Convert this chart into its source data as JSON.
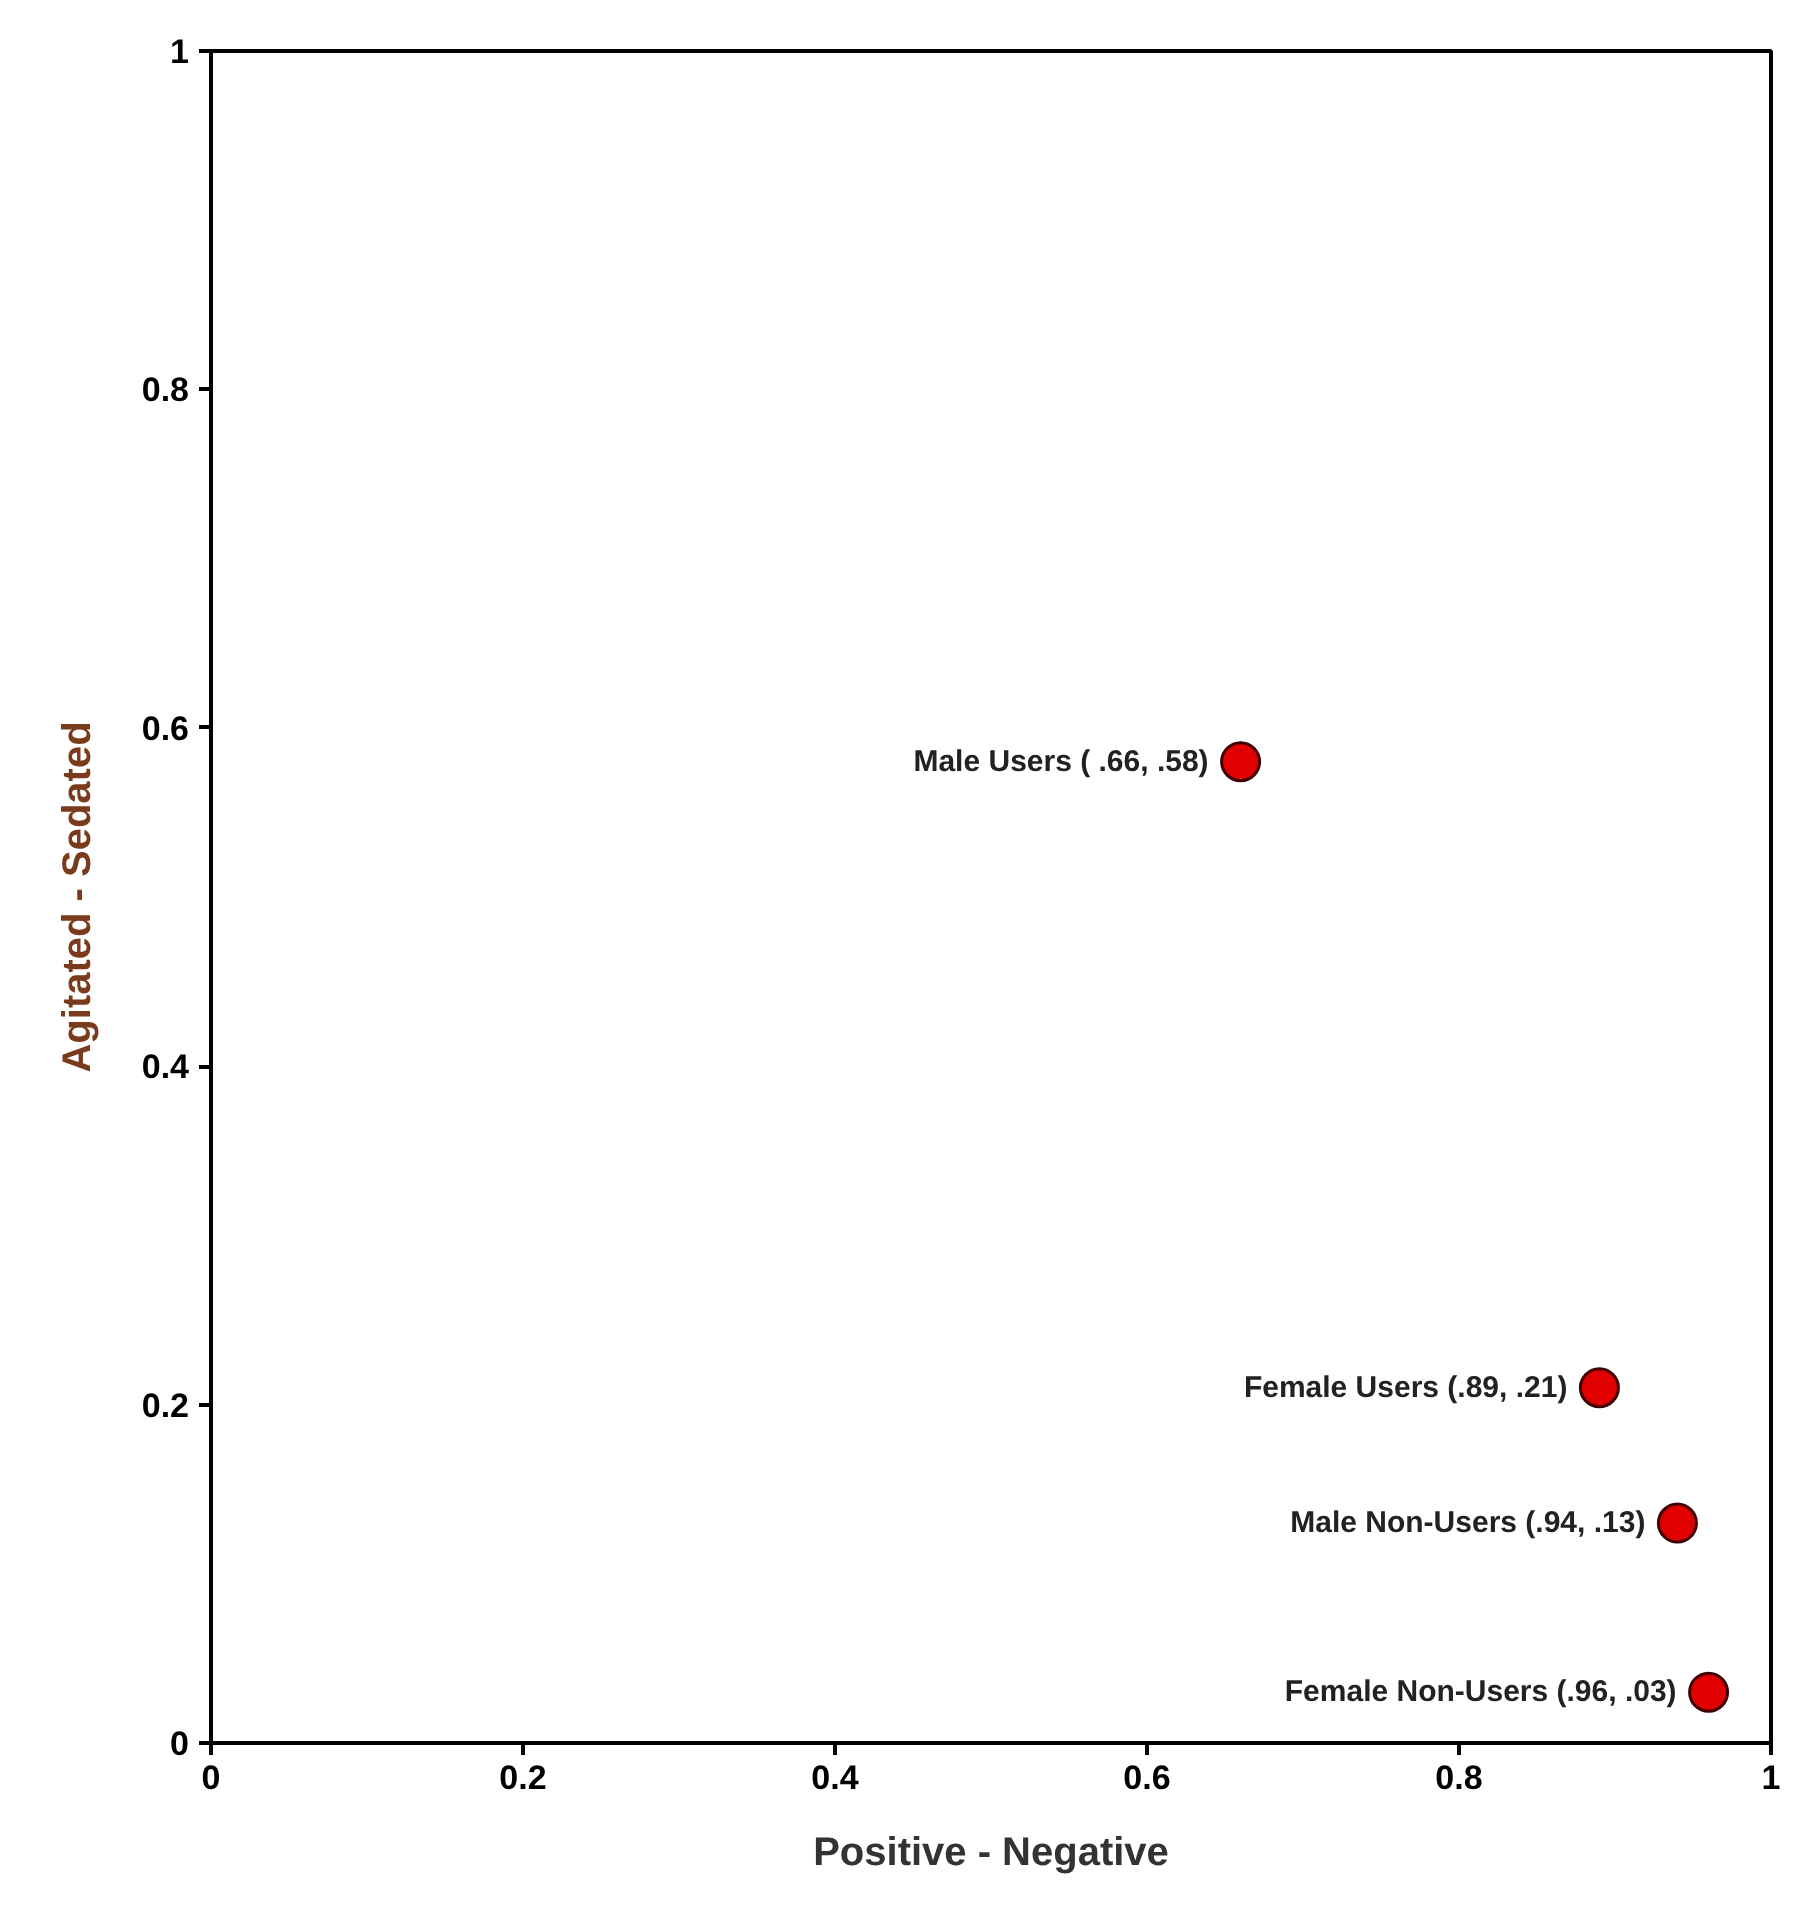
{
  "chart_data": {
    "type": "scatter",
    "xlabel": "Positive - Negative",
    "ylabel": "Agitated - Sedated",
    "x": [
      0.66,
      0.89,
      0.94,
      0.96
    ],
    "series": [
      {
        "color": "#e00000",
        "values": [
          0.58,
          0.21,
          0.13,
          0.03
        ]
      }
    ],
    "xlim": [
      0,
      1
    ],
    "ylim": [
      0,
      1
    ],
    "xticks": [
      0,
      0.2,
      0.4,
      0.6,
      0.8,
      1
    ],
    "yticks": [
      0,
      0.2,
      0.4,
      0.6,
      0.8,
      1
    ],
    "grid": false,
    "marker": "circle",
    "annotations": [
      {
        "text": "Male Users ( .66, .58)",
        "x": 0.66,
        "y": 0.58
      },
      {
        "text": "Female Users (.89, .21)",
        "x": 0.89,
        "y": 0.21
      },
      {
        "text": "Male Non-Users (.94, .13)",
        "x": 0.94,
        "y": 0.13
      },
      {
        "text": "Female Non-Users (.96, .03)",
        "x": 0.96,
        "y": 0.03
      }
    ]
  }
}
